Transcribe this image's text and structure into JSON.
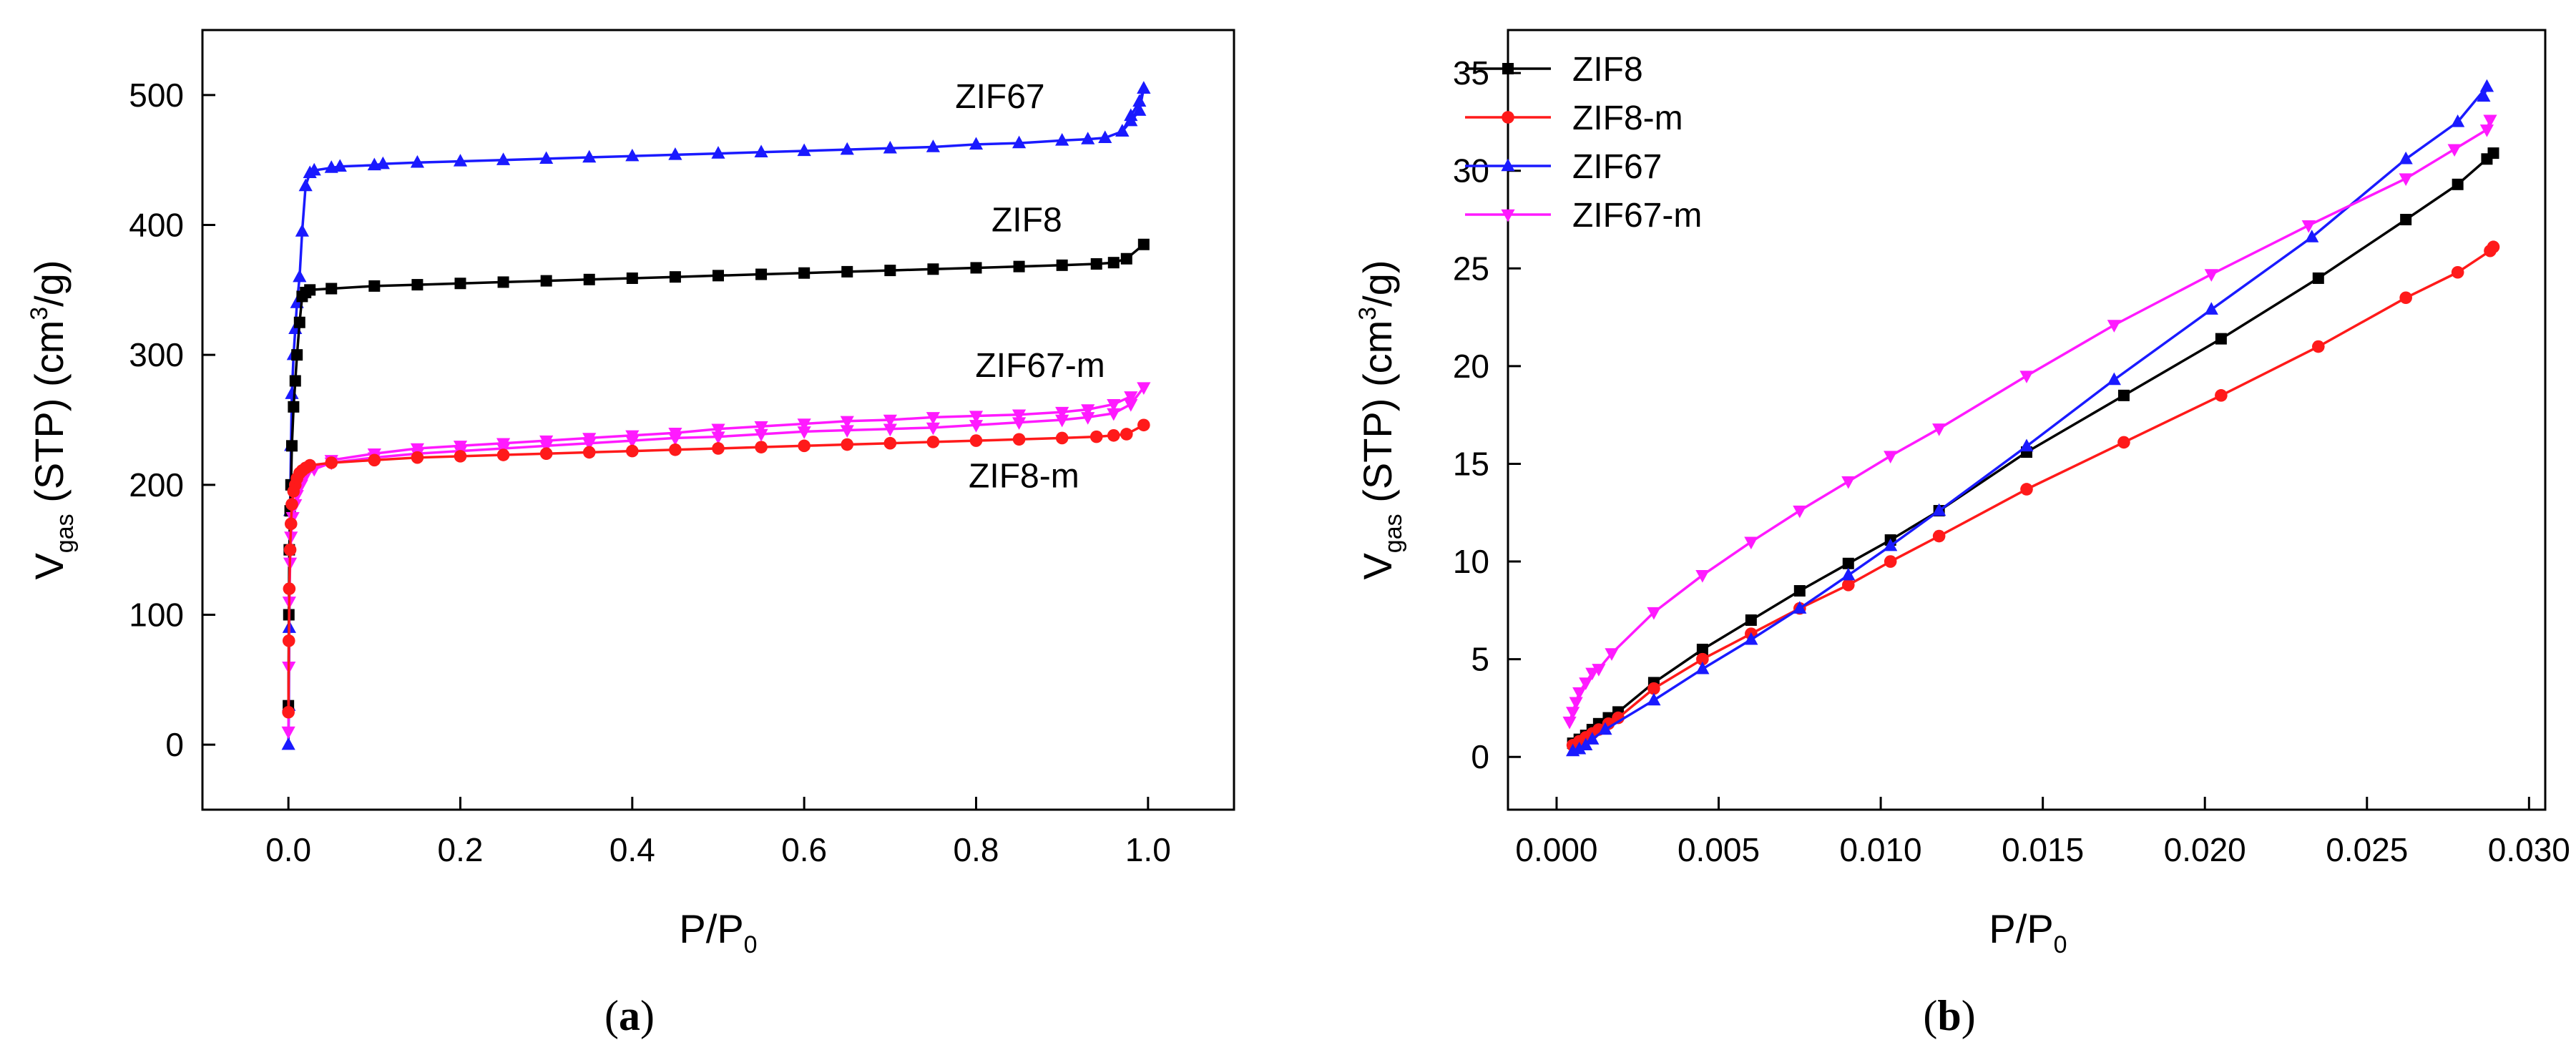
{
  "chart_data": [
    {
      "id": "a",
      "type": "line",
      "panel_label_open": "(",
      "panel_label_letter": "a",
      "panel_label_close": ")",
      "xlabel_main": "P/P",
      "xlabel_sub": "0",
      "ylabel_v": "V",
      "ylabel_sub": "gas",
      "ylabel_mid": " (STP) (cm",
      "ylabel_sup": "3",
      "ylabel_end": "/g)",
      "xlim": [
        -0.1,
        1.1
      ],
      "ylim": [
        -50,
        550
      ],
      "xticks": [
        0.0,
        0.2,
        0.4,
        0.6,
        0.8,
        1.0
      ],
      "xtick_labels": [
        "0.0",
        "0.2",
        "0.4",
        "0.6",
        "0.8",
        "1.0"
      ],
      "yticks": [
        0,
        100,
        200,
        300,
        400,
        500
      ],
      "ytick_labels": [
        "0",
        "100",
        "200",
        "300",
        "400",
        "500"
      ],
      "annotations": [
        {
          "text": "ZIF67",
          "x": 0.88,
          "y": 490,
          "anchor": "end"
        },
        {
          "text": "ZIF8",
          "x": 0.9,
          "y": 395,
          "anchor": "end"
        },
        {
          "text": "ZIF67-m",
          "x": 0.95,
          "y": 283,
          "anchor": "end"
        },
        {
          "text": "ZIF8-m",
          "x": 0.92,
          "y": 198,
          "anchor": "end"
        }
      ],
      "series": [
        {
          "name": "ZIF67",
          "color": "#1a1aff",
          "marker": "triangle-up",
          "x": [
            0.0,
            0.0005,
            0.001,
            0.002,
            0.003,
            0.004,
            0.006,
            0.008,
            0.01,
            0.013,
            0.016,
            0.02,
            0.025,
            0.03,
            0.05,
            0.06,
            0.1,
            0.11,
            0.15,
            0.2,
            0.25,
            0.3,
            0.35,
            0.4,
            0.45,
            0.5,
            0.55,
            0.6,
            0.65,
            0.7,
            0.75,
            0.8,
            0.85,
            0.9,
            0.93,
            0.95,
            0.97,
            0.98,
            0.99,
            0.995
          ],
          "y": [
            0,
            30,
            90,
            180,
            230,
            270,
            300,
            320,
            340,
            360,
            395,
            430,
            440,
            442,
            444,
            445,
            446,
            447,
            448,
            449,
            450,
            451,
            452,
            453,
            454,
            455,
            456,
            457,
            458,
            459,
            460,
            462,
            463,
            465,
            466,
            467,
            472,
            480,
            488,
            505
          ],
          "x2": [
            0.995,
            0.99,
            0.98,
            0.97
          ],
          "y2": [
            505,
            495,
            484,
            472
          ]
        },
        {
          "name": "ZIF8",
          "color": "#000000",
          "marker": "square",
          "x": [
            0.0,
            0.0005,
            0.001,
            0.002,
            0.003,
            0.004,
            0.006,
            0.008,
            0.01,
            0.013,
            0.016,
            0.02,
            0.025,
            0.05,
            0.1,
            0.15,
            0.2,
            0.25,
            0.3,
            0.35,
            0.4,
            0.45,
            0.5,
            0.55,
            0.6,
            0.65,
            0.7,
            0.75,
            0.8,
            0.85,
            0.9,
            0.94,
            0.96,
            0.975,
            0.995
          ],
          "y": [
            30,
            100,
            150,
            180,
            200,
            230,
            260,
            280,
            300,
            325,
            345,
            348,
            350,
            351,
            353,
            354,
            355,
            356,
            357,
            358,
            359,
            360,
            361,
            362,
            363,
            364,
            365,
            366,
            367,
            368,
            369,
            370,
            371,
            374,
            385
          ]
        },
        {
          "name": "ZIF67-m",
          "color": "#ff1aff",
          "marker": "triangle-down",
          "x": [
            0.0,
            0.0005,
            0.001,
            0.002,
            0.003,
            0.005,
            0.008,
            0.01,
            0.015,
            0.02,
            0.03,
            0.05,
            0.1,
            0.15,
            0.2,
            0.25,
            0.3,
            0.35,
            0.4,
            0.45,
            0.5,
            0.55,
            0.6,
            0.65,
            0.7,
            0.75,
            0.8,
            0.85,
            0.9,
            0.93,
            0.96,
            0.98,
            0.995
          ],
          "y": [
            10,
            60,
            110,
            140,
            160,
            175,
            185,
            192,
            200,
            207,
            212,
            217,
            221,
            224,
            226,
            228,
            230,
            232,
            234,
            236,
            237,
            239,
            241,
            242,
            243,
            244,
            246,
            248,
            250,
            252,
            255,
            262,
            275
          ],
          "x2": [
            0.98,
            0.96,
            0.93,
            0.9,
            0.85,
            0.8,
            0.75,
            0.7,
            0.65,
            0.6,
            0.55,
            0.5,
            0.45,
            0.4,
            0.35,
            0.3,
            0.25,
            0.2,
            0.15,
            0.1,
            0.05
          ],
          "y2": [
            268,
            262,
            258,
            256,
            254,
            253,
            252,
            250,
            249,
            247,
            245,
            243,
            240,
            238,
            236,
            234,
            232,
            230,
            228,
            224,
            219
          ]
        },
        {
          "name": "ZIF8-m",
          "color": "#ff1a1a",
          "marker": "circle",
          "x": [
            0.0,
            0.0005,
            0.001,
            0.002,
            0.003,
            0.004,
            0.006,
            0.008,
            0.01,
            0.013,
            0.016,
            0.02,
            0.025,
            0.05,
            0.1,
            0.15,
            0.2,
            0.25,
            0.3,
            0.35,
            0.4,
            0.45,
            0.5,
            0.55,
            0.6,
            0.65,
            0.7,
            0.75,
            0.8,
            0.85,
            0.9,
            0.94,
            0.96,
            0.975,
            0.995
          ],
          "y": [
            25,
            80,
            120,
            150,
            170,
            185,
            195,
            200,
            205,
            209,
            211,
            213,
            215,
            217,
            219,
            221,
            222,
            223,
            224,
            225,
            226,
            227,
            228,
            229,
            230,
            231,
            232,
            233,
            234,
            235,
            236,
            237,
            238,
            239,
            246
          ]
        }
      ]
    },
    {
      "id": "b",
      "type": "line",
      "panel_label_open": "(",
      "panel_label_letter": "b",
      "panel_label_close": ")",
      "xlabel_main": "P/P",
      "xlabel_sub": "0",
      "ylabel_v": "V",
      "ylabel_sub": "gas",
      "ylabel_mid": " (STP) (cm",
      "ylabel_sup": "3",
      "ylabel_end": "/g)",
      "xlim": [
        -0.0015,
        0.0305
      ],
      "ylim": [
        -2.7,
        37.2
      ],
      "xticks": [
        0.0,
        0.005,
        0.01,
        0.015,
        0.02,
        0.025,
        0.03
      ],
      "xtick_labels": [
        "0.000",
        "0.005",
        "0.010",
        "0.015",
        "0.020",
        "0.025",
        "0.030"
      ],
      "yticks": [
        0,
        5,
        10,
        15,
        20,
        25,
        30,
        35
      ],
      "ytick_labels": [
        "0",
        "5",
        "10",
        "15",
        "20",
        "25",
        "30",
        "35"
      ],
      "legend_position": "top-left",
      "series": [
        {
          "name": "ZIF8",
          "color": "#000000",
          "marker": "square",
          "x": [
            0.0005,
            0.0007,
            0.0009,
            0.0011,
            0.0013,
            0.0016,
            0.0019,
            0.003,
            0.0045,
            0.006,
            0.0075,
            0.009,
            0.0103,
            0.0118,
            0.0145,
            0.0175,
            0.0205,
            0.0235,
            0.0262,
            0.0278,
            0.0287,
            0.0289
          ],
          "y": [
            0.7,
            0.9,
            1.1,
            1.4,
            1.7,
            2.0,
            2.3,
            3.8,
            5.5,
            7.0,
            8.5,
            9.9,
            11.1,
            12.6,
            15.6,
            18.5,
            21.4,
            24.5,
            27.5,
            29.3,
            30.6,
            30.9
          ]
        },
        {
          "name": "ZIF8-m",
          "color": "#ff1a1a",
          "marker": "circle",
          "x": [
            0.0005,
            0.0007,
            0.0009,
            0.0011,
            0.0013,
            0.0016,
            0.0019,
            0.003,
            0.0045,
            0.006,
            0.0075,
            0.009,
            0.0103,
            0.0118,
            0.0145,
            0.0175,
            0.0205,
            0.0235,
            0.0262,
            0.0278,
            0.0288,
            0.0289
          ],
          "y": [
            0.6,
            0.8,
            1.0,
            1.2,
            1.4,
            1.7,
            2.0,
            3.5,
            5.0,
            6.3,
            7.6,
            8.8,
            10.0,
            11.3,
            13.7,
            16.1,
            18.5,
            21.0,
            23.5,
            24.8,
            25.9,
            26.1
          ]
        },
        {
          "name": "ZIF67",
          "color": "#1a1aff",
          "marker": "triangle-up",
          "x": [
            0.0005,
            0.0007,
            0.0009,
            0.0011,
            0.0015,
            0.003,
            0.0045,
            0.006,
            0.0075,
            0.009,
            0.0103,
            0.0118,
            0.0145,
            0.0172,
            0.0202,
            0.0233,
            0.0262,
            0.0278,
            0.0287
          ],
          "y": [
            0.3,
            0.4,
            0.6,
            0.9,
            1.4,
            2.9,
            4.5,
            6.0,
            7.6,
            9.3,
            10.8,
            12.6,
            15.9,
            19.3,
            22.9,
            26.6,
            30.6,
            32.5,
            34.3
          ],
          "x2": [
            0.0287,
            0.0286
          ],
          "y2": [
            34.3,
            33.8
          ]
        },
        {
          "name": "ZIF67-m",
          "color": "#ff1aff",
          "marker": "triangle-down",
          "x": [
            0.0004,
            0.0005,
            0.0006,
            0.0007,
            0.0009,
            0.0011,
            0.0013,
            0.0017,
            0.003,
            0.0045,
            0.006,
            0.0075,
            0.009,
            0.0103,
            0.0118,
            0.0145,
            0.0172,
            0.0202,
            0.0232,
            0.0262,
            0.0277,
            0.0287,
            0.0288
          ],
          "y": [
            1.8,
            2.3,
            2.8,
            3.3,
            3.8,
            4.3,
            4.5,
            5.3,
            7.4,
            9.3,
            11.0,
            12.6,
            14.1,
            15.4,
            16.8,
            19.5,
            22.1,
            24.7,
            27.2,
            29.6,
            31.1,
            32.1,
            32.6
          ]
        }
      ]
    }
  ]
}
